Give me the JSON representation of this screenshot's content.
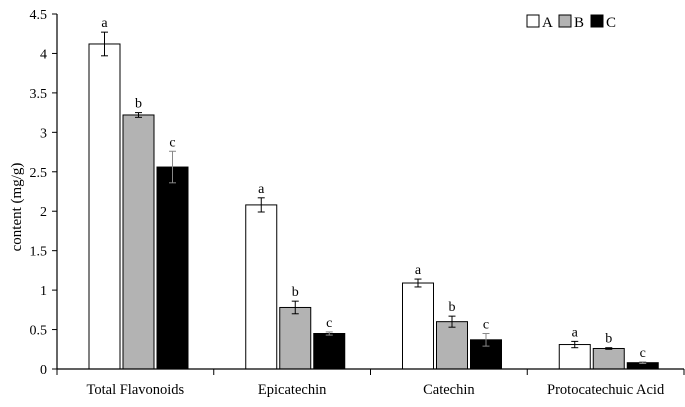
{
  "chart_data": {
    "type": "bar",
    "title": "",
    "xlabel": "",
    "ylabel": "content (mg/g)",
    "ylim": [
      0,
      4.5
    ],
    "yticks": [
      "0",
      "0.5",
      "1",
      "1.5",
      "2",
      "2.5",
      "3",
      "3.5",
      "4",
      "4.5"
    ],
    "grid": false,
    "legend_position": "top-right",
    "categories": [
      "Total Flavonoids",
      "Epicatechin",
      "Catechin",
      "Protocatechuic Acid"
    ],
    "series": [
      {
        "name": "A",
        "color": "#ffffff",
        "values": [
          4.12,
          2.08,
          1.09,
          0.31
        ],
        "errors": [
          0.15,
          0.09,
          0.05,
          0.04
        ],
        "labels": [
          "a",
          "a",
          "a",
          "a"
        ]
      },
      {
        "name": "B",
        "color": "#b3b3b3",
        "values": [
          3.22,
          0.78,
          0.6,
          0.26
        ],
        "errors": [
          0.03,
          0.08,
          0.07,
          0.01
        ],
        "labels": [
          "b",
          "b",
          "b",
          "b"
        ]
      },
      {
        "name": "C",
        "color": "#000000",
        "values": [
          2.56,
          0.45,
          0.37,
          0.08
        ],
        "errors": [
          0.2,
          0.02,
          0.08,
          0.01
        ],
        "labels": [
          "c",
          "c",
          "c",
          "c"
        ]
      }
    ]
  }
}
